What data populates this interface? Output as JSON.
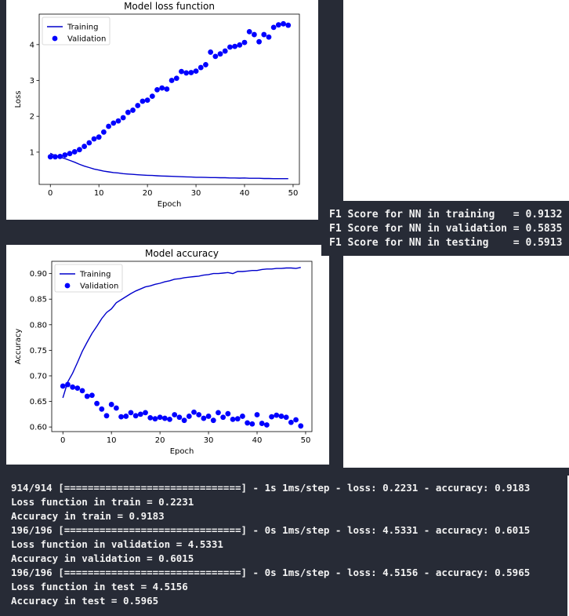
{
  "chart_data": [
    {
      "type": "line",
      "title": "Model loss function",
      "xlabel": "Epoch",
      "ylabel": "Loss",
      "xlim": [
        -2.3,
        51.3
      ],
      "ylim": [
        0.1,
        4.85
      ],
      "xticks": [
        0,
        10,
        20,
        30,
        40,
        50
      ],
      "yticks": [
        1,
        2,
        3,
        4
      ],
      "legend_position": "top-left",
      "series": [
        {
          "name": "Training",
          "style": "line",
          "color": "#0000cc",
          "x": [
            0,
            1,
            2,
            3,
            4,
            5,
            6,
            7,
            8,
            9,
            10,
            11,
            12,
            13,
            14,
            15,
            16,
            17,
            18,
            19,
            20,
            21,
            22,
            23,
            24,
            25,
            26,
            27,
            28,
            29,
            30,
            31,
            32,
            33,
            34,
            35,
            36,
            37,
            38,
            39,
            40,
            41,
            42,
            43,
            44,
            45,
            46,
            47,
            48,
            49
          ],
          "y": [
            0.97,
            0.9,
            0.86,
            0.82,
            0.77,
            0.72,
            0.66,
            0.61,
            0.57,
            0.53,
            0.5,
            0.47,
            0.45,
            0.43,
            0.42,
            0.4,
            0.39,
            0.38,
            0.37,
            0.36,
            0.355,
            0.35,
            0.34,
            0.335,
            0.33,
            0.325,
            0.32,
            0.315,
            0.31,
            0.305,
            0.3,
            0.3,
            0.295,
            0.29,
            0.29,
            0.285,
            0.285,
            0.28,
            0.28,
            0.275,
            0.28,
            0.27,
            0.27,
            0.27,
            0.265,
            0.265,
            0.26,
            0.26,
            0.26,
            0.26
          ]
        },
        {
          "name": "Validation",
          "style": "scatter",
          "color": "#0000ff",
          "x": [
            0,
            1,
            2,
            3,
            4,
            5,
            6,
            7,
            8,
            9,
            10,
            11,
            12,
            13,
            14,
            15,
            16,
            17,
            18,
            19,
            20,
            21,
            22,
            23,
            24,
            25,
            26,
            27,
            28,
            29,
            30,
            31,
            32,
            33,
            34,
            35,
            36,
            37,
            38,
            39,
            40,
            41,
            42,
            43,
            44,
            45,
            46,
            47,
            48,
            49
          ],
          "y": [
            0.87,
            0.87,
            0.88,
            0.92,
            0.96,
            1.01,
            1.07,
            1.16,
            1.26,
            1.37,
            1.42,
            1.56,
            1.72,
            1.81,
            1.87,
            1.96,
            2.11,
            2.17,
            2.3,
            2.42,
            2.45,
            2.56,
            2.74,
            2.79,
            2.76,
            3.0,
            3.06,
            3.25,
            3.21,
            3.22,
            3.26,
            3.36,
            3.44,
            3.79,
            3.67,
            3.74,
            3.82,
            3.93,
            3.95,
            3.99,
            4.06,
            4.36,
            4.28,
            4.08,
            4.28,
            4.21,
            4.48,
            4.55,
            4.58,
            4.54
          ]
        }
      ]
    },
    {
      "type": "line",
      "title": "Model accuracy",
      "xlabel": "Epoch",
      "ylabel": "Accuracy",
      "xlim": [
        -2.3,
        51.3
      ],
      "ylim": [
        0.591,
        0.924
      ],
      "xticks": [
        0,
        10,
        20,
        30,
        40,
        50
      ],
      "yticks": [
        0.6,
        0.65,
        0.7,
        0.75,
        0.8,
        0.85,
        0.9
      ],
      "ytick_labels": [
        "0.60",
        "0.65",
        "0.70",
        "0.75",
        "0.80",
        "0.85",
        "0.90"
      ],
      "legend_position": "top-left",
      "series": [
        {
          "name": "Training",
          "style": "line",
          "color": "#0000cc",
          "x": [
            0,
            1,
            2,
            3,
            4,
            5,
            6,
            7,
            8,
            9,
            10,
            11,
            12,
            13,
            14,
            15,
            16,
            17,
            18,
            19,
            20,
            21,
            22,
            23,
            24,
            25,
            26,
            27,
            28,
            29,
            30,
            31,
            32,
            33,
            34,
            35,
            36,
            37,
            38,
            39,
            40,
            41,
            42,
            43,
            44,
            45,
            46,
            47,
            48,
            49
          ],
          "y": [
            0.657,
            0.688,
            0.705,
            0.726,
            0.748,
            0.766,
            0.783,
            0.797,
            0.812,
            0.824,
            0.831,
            0.843,
            0.849,
            0.855,
            0.861,
            0.866,
            0.87,
            0.874,
            0.876,
            0.879,
            0.881,
            0.884,
            0.886,
            0.889,
            0.89,
            0.892,
            0.893,
            0.894,
            0.895,
            0.897,
            0.898,
            0.9,
            0.9,
            0.901,
            0.902,
            0.9,
            0.904,
            0.904,
            0.905,
            0.906,
            0.906,
            0.908,
            0.909,
            0.909,
            0.91,
            0.91,
            0.911,
            0.911,
            0.91,
            0.912
          ]
        },
        {
          "name": "Validation",
          "style": "scatter",
          "color": "#0000ff",
          "x": [
            0,
            1,
            2,
            3,
            4,
            5,
            6,
            7,
            8,
            9,
            10,
            11,
            12,
            13,
            14,
            15,
            16,
            17,
            18,
            19,
            20,
            21,
            22,
            23,
            24,
            25,
            26,
            27,
            28,
            29,
            30,
            31,
            32,
            33,
            34,
            35,
            36,
            37,
            38,
            39,
            40,
            41,
            42,
            43,
            44,
            45,
            46,
            47,
            48,
            49
          ],
          "y": [
            0.68,
            0.683,
            0.678,
            0.676,
            0.671,
            0.66,
            0.662,
            0.646,
            0.635,
            0.622,
            0.644,
            0.637,
            0.62,
            0.621,
            0.628,
            0.622,
            0.625,
            0.628,
            0.618,
            0.616,
            0.619,
            0.617,
            0.615,
            0.624,
            0.619,
            0.613,
            0.621,
            0.629,
            0.624,
            0.617,
            0.621,
            0.613,
            0.628,
            0.619,
            0.626,
            0.615,
            0.616,
            0.621,
            0.608,
            0.606,
            0.624,
            0.607,
            0.604,
            0.62,
            0.623,
            0.621,
            0.619,
            0.609,
            0.614,
            0.602
          ]
        }
      ]
    }
  ],
  "f1_scores": {
    "lines": [
      "F1 Score for NN in training   = 0.9132",
      "F1 Score for NN in validation = 0.5835",
      "F1 Score for NN in testing    = 0.5913"
    ]
  },
  "console": {
    "lines": [
      "914/914 [==============================] - 1s 1ms/step - loss: 0.2231 - accuracy: 0.9183",
      "Loss function in train = 0.2231",
      "Accuracy in train = 0.9183",
      "196/196 [==============================] - 0s 1ms/step - loss: 4.5331 - accuracy: 0.6015",
      "Loss function in validation = 4.5331",
      "Accuracy in validation = 0.6015",
      "196/196 [==============================] - 0s 1ms/step - loss: 4.5156 - accuracy: 0.5965",
      "Loss function in test = 4.5156",
      "Accuracy in test = 0.5965"
    ]
  }
}
